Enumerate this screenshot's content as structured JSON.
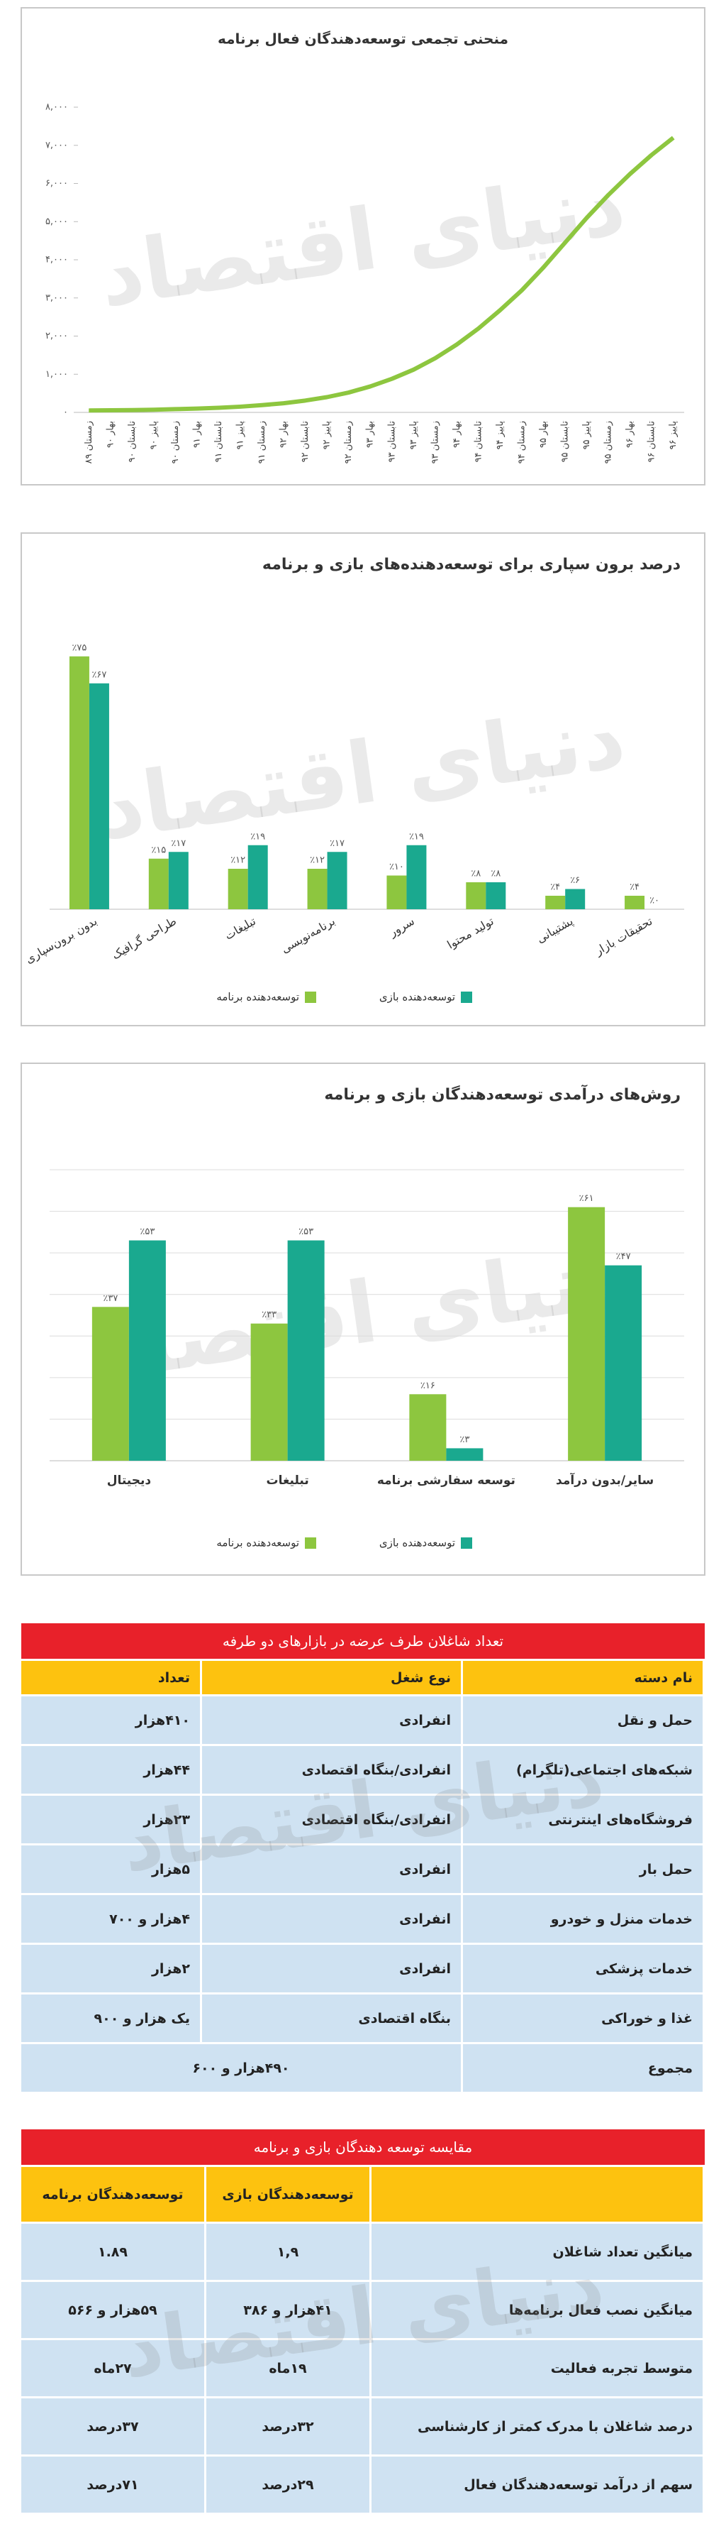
{
  "watermark": "دنیای اقتصاد",
  "chart_data": [
    {
      "type": "line",
      "title": "منحنی تجمعی توسعه‌دهندگان فعال برنامه",
      "categories": [
        "زمستان ۸۹",
        "بهار ۹۰",
        "تابستان ۹۰",
        "پاییز ۹۰",
        "زمستان ۹۰",
        "بهار ۹۱",
        "تابستان ۹۱",
        "پاییز ۹۱",
        "زمستان ۹۱",
        "بهار ۹۲",
        "تابستان ۹۲",
        "پاییز ۹۲",
        "زمستان ۹۲",
        "بهار ۹۳",
        "تابستان ۹۳",
        "پاییز ۹۳",
        "زمستان ۹۳",
        "بهار ۹۴",
        "تابستان ۹۴",
        "پاییز ۹۴",
        "زمستان ۹۴",
        "بهار ۹۵",
        "تابستان ۹۵",
        "پاییز ۹۵",
        "زمستان ۹۵",
        "بهار ۹۶",
        "تابستان ۹۶",
        "پاییز ۹۶"
      ],
      "values": [
        50,
        55,
        60,
        70,
        85,
        100,
        120,
        150,
        190,
        240,
        310,
        400,
        520,
        680,
        880,
        1120,
        1420,
        1780,
        2200,
        2680,
        3200,
        3800,
        4450,
        5100,
        5700,
        6250,
        6750,
        7200
      ],
      "color": "#8dc63f",
      "ylim": [
        0,
        8000
      ],
      "yticks": [
        {
          "value": 0,
          "label": "۰"
        },
        {
          "value": 1000,
          "label": "۱,۰۰۰"
        },
        {
          "value": 2000,
          "label": "۲,۰۰۰"
        },
        {
          "value": 3000,
          "label": "۳,۰۰۰"
        },
        {
          "value": 4000,
          "label": "۴,۰۰۰"
        },
        {
          "value": 5000,
          "label": "۵,۰۰۰"
        },
        {
          "value": 6000,
          "label": "۶,۰۰۰"
        },
        {
          "value": 7000,
          "label": "۷,۰۰۰"
        },
        {
          "value": 8000,
          "label": "۸,۰۰۰"
        }
      ],
      "grid": false
    },
    {
      "type": "bar",
      "title": "درصد برون سپاری برای توسعه‌دهنده‌های بازی و برنامه",
      "categories": [
        "بدون برون‌سپاری",
        "طراحی گرافیک",
        "تبلیغات",
        "برنامه‌نویسی",
        "سرور",
        "تولید محتوا",
        "پشتیبانی",
        "تحقیقات بازار"
      ],
      "series": [
        {
          "name": "توسعه‌دهنده برنامه",
          "color": "#8dc63f",
          "values": [
            75,
            15,
            12,
            12,
            10,
            8,
            4,
            4
          ],
          "value_labels": [
            "٪۷۵",
            "٪۱۵",
            "٪۱۲",
            "٪۱۲",
            "٪۱۰",
            "٪۸",
            "٪۴",
            "٪۴"
          ]
        },
        {
          "name": "توسعه‌دهنده بازی",
          "color": "#1aa98f",
          "values": [
            67,
            17,
            19,
            17,
            19,
            8,
            6,
            0
          ],
          "value_labels": [
            "٪۶۷",
            "٪۱۷",
            "٪۱۹",
            "٪۱۷",
            "٪۱۹",
            "٪۸",
            "٪۶",
            "٪۰"
          ]
        }
      ],
      "ylim": [
        0,
        80
      ],
      "grid": false
    },
    {
      "type": "bar",
      "title": "روش‌های درآمدی توسعه‌دهندگان بازی و برنامه",
      "categories": [
        "دیجیتال",
        "تبلیغات",
        "توسعه سفارشی برنامه",
        "سایر/بدون درآمد"
      ],
      "series": [
        {
          "name": "توسعه‌دهنده برنامه",
          "color": "#8dc63f",
          "values": [
            37,
            33,
            16,
            61
          ],
          "value_labels": [
            "٪۳۷",
            "٪۳۳",
            "٪۱۶",
            "٪۶۱"
          ]
        },
        {
          "name": "توسعه‌دهنده بازی",
          "color": "#1aa98f",
          "values": [
            53,
            53,
            3,
            47
          ],
          "value_labels": [
            "٪۵۳",
            "٪۵۳",
            "٪۳",
            "٪۴۷"
          ]
        }
      ],
      "ylim": [
        0,
        70
      ],
      "yticks": [
        0,
        10,
        20,
        30,
        40,
        50,
        60,
        70
      ],
      "grid": true
    }
  ],
  "tables": [
    {
      "title": "تعداد شاغلان طرف عرضه در بازارهای دو طرفه",
      "columns": [
        "نام دسته",
        "نوع شغل",
        "تعداد"
      ],
      "rows": [
        [
          "حمل و نقل",
          "انفرادی",
          "۴۱۰هزار"
        ],
        [
          "شبکه‌های اجتماعی(تلگرام)",
          "انفرادی/بنگاه اقتصادی",
          "۴۴هزار"
        ],
        [
          "فروشگاه‌های اینترنتی",
          "انفرادی/بنگاه اقتصادی",
          "۲۳هزار"
        ],
        [
          "حمل بار",
          "انفرادی",
          "۵هزار"
        ],
        [
          "خدمات منزل و خودرو",
          "انفرادی",
          "۴هزار و ۷۰۰"
        ],
        [
          "خدمات پزشکی",
          "انفرادی",
          "۲هزار"
        ],
        [
          "غذا و خوراکی",
          "بنگاه اقتصادی",
          "یک هزار و ۹۰۰"
        ]
      ],
      "total": [
        "مجموع",
        "۴۹۰هزار و ۶۰۰"
      ]
    },
    {
      "title": "مقایسه توسعه دهندگان بازی و برنامه",
      "columns": [
        "توسعه‌دهندگان بازی",
        "توسعه‌دهندگان برنامه"
      ],
      "rows": [
        [
          "میانگین تعداد شاغلان",
          "۱,۹",
          "۱.۸۹"
        ],
        [
          "میانگین نصب فعال برنامه‌ها",
          "۴۱هزار و ۳۸۶",
          "۵۹هزار و ۵۶۶"
        ],
        [
          "متوسط تجربه فعالیت",
          "۱۹ماه",
          "۲۷ماه"
        ],
        [
          "درصد شاغلان با مدرک کمتر از کارشناسی",
          "۳۲درصد",
          "۳۷درصد"
        ],
        [
          "سهم از درآمد توسعه‌دهندگان فعال",
          "۲۹درصد",
          "۷۱درصد"
        ]
      ]
    }
  ]
}
